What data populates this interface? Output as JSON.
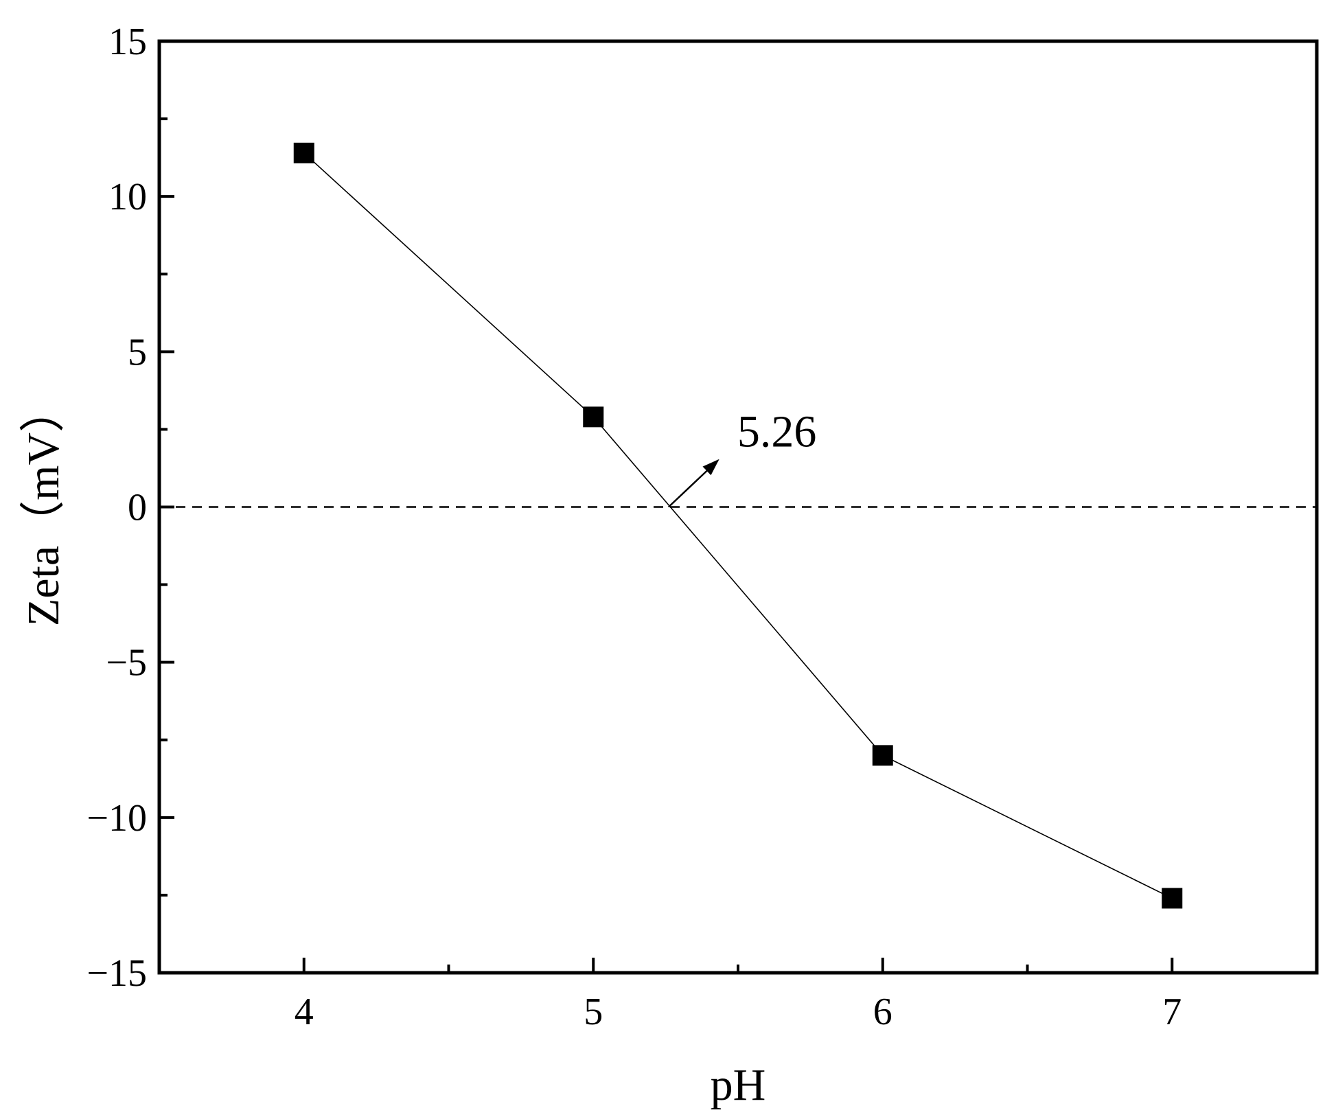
{
  "chart_data": {
    "type": "line",
    "title": "",
    "xlabel": "pH",
    "ylabel": "Zeta（mV）",
    "x": [
      4,
      5,
      6,
      7
    ],
    "series": [
      {
        "values": [
          11.4,
          2.9,
          -8.0,
          -12.6
        ],
        "marker": "square",
        "color": "#000000"
      }
    ],
    "xlim": [
      3.5,
      7.5
    ],
    "ylim": [
      -15,
      15
    ],
    "xticks": [
      4,
      5,
      6,
      7
    ],
    "yticks": [
      -15,
      -10,
      -5,
      0,
      5,
      10,
      15
    ],
    "xtick_labels": [
      "4",
      "5",
      "6",
      "7"
    ],
    "ytick_labels": [
      "−15",
      "−10",
      "−5",
      "0",
      "5",
      "10",
      "15"
    ],
    "reference_line": {
      "y": 0,
      "style": "dashed"
    },
    "annotation": {
      "text": "5.26",
      "x": 5.26,
      "y": 0
    },
    "grid": false,
    "legend": "none"
  }
}
